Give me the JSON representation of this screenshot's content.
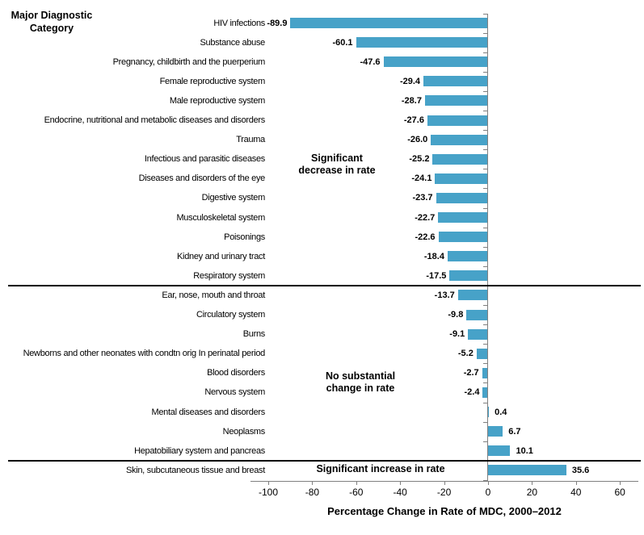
{
  "header": {
    "category_axis_title": "Major Diagnostic Category"
  },
  "chart_data": {
    "type": "bar",
    "orientation": "horizontal",
    "title": "",
    "xlabel": "Percentage Change in Rate of MDC, 2000–2012",
    "ylabel": "Major Diagnostic Category",
    "categories": [
      "HIV infections",
      "Substance abuse",
      "Pregnancy, childbirth and the puerperium",
      "Female reproductive system",
      "Male reproductive system",
      "Endocrine, nutritional and metabolic diseases and disorders",
      "Trauma",
      "Infectious and parasitic diseases",
      "Diseases and disorders of the eye",
      "Digestive system",
      "Musculoskeletal system",
      "Poisonings",
      "Kidney and urinary tract",
      "Respiratory system",
      "Ear, nose, mouth and throat",
      "Circulatory system",
      "Burns",
      "Newborns and other neonates with condtn orig In perinatal period",
      "Blood disorders",
      "Nervous system",
      "Mental diseases and disorders",
      "Neoplasms",
      "Hepatobiliary system and pancreas",
      "Skin, subcutaneous tissue and breast"
    ],
    "values": [
      -89.9,
      -60.1,
      -47.6,
      -29.4,
      -28.7,
      -27.6,
      -26.0,
      -25.2,
      -24.1,
      -23.7,
      -22.7,
      -22.6,
      -18.4,
      -17.5,
      -13.7,
      -9.8,
      -9.1,
      -5.2,
      -2.7,
      -2.4,
      0.4,
      6.7,
      10.1,
      35.6
    ],
    "value_labels": [
      "-89.9",
      "-60.1",
      "-47.6",
      "-29.4",
      "-28.7",
      "-27.6",
      "-26.0",
      "-25.2",
      "-24.1",
      "-23.7",
      "-22.7",
      "-22.6",
      "-18.4",
      "-17.5",
      "-13.7",
      "-9.8",
      "-9.1",
      "-5.2",
      "-2.7",
      "-2.4",
      "0.4",
      "6.7",
      "10.1",
      "35.6"
    ],
    "groups": [
      {
        "label": "Significant decrease in rate",
        "from": 0,
        "to": 13
      },
      {
        "label": "No substantial change in rate",
        "from": 14,
        "to": 22
      },
      {
        "label": "Significant increase in rate",
        "from": 23,
        "to": 23
      }
    ],
    "x_ticks": [
      -100,
      -80,
      -60,
      -40,
      -20,
      0,
      20,
      40,
      60
    ],
    "x_tick_labels": [
      "-100",
      "-80",
      "-60",
      "-40",
      "-20",
      "0",
      "20",
      "40",
      "60"
    ],
    "xlim": [
      -108,
      68
    ],
    "grid": false,
    "legend": "none",
    "bar_color": "#47A2C8",
    "axis_color": "#808080",
    "divider_color": "#000000"
  }
}
